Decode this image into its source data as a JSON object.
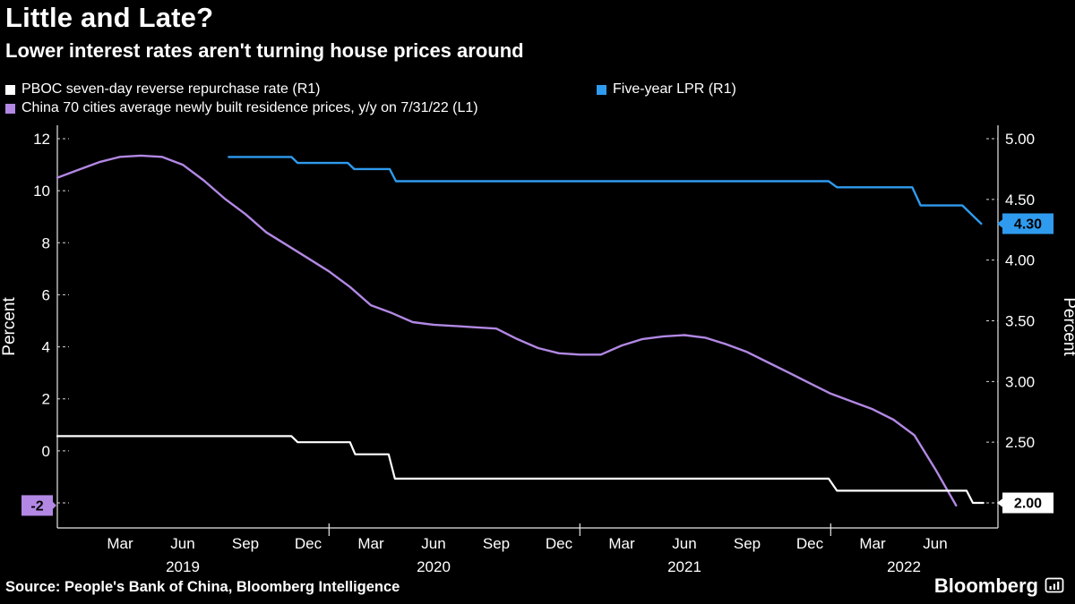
{
  "page": {
    "background": "#000000"
  },
  "header": {
    "title": "Little and Late?",
    "subtitle": "Lower interest rates aren't turning house prices around"
  },
  "legend": [
    {
      "label": "PBOC seven-day reverse repurchase rate (R1)",
      "color": "#ffffff"
    },
    {
      "label": "Five-year LPR (R1)",
      "color": "#2f9bee"
    },
    {
      "label": "China 70 cities average newly built residence prices, y/y on 7/31/22 (L1)",
      "color": "#b288e4"
    }
  ],
  "footer": {
    "source": "Source: People's Bank of China, Bloomberg Intelligence",
    "brand": "Bloomberg"
  },
  "chart_data": {
    "type": "line",
    "title": "Little and Late?",
    "subtitle": "Lower interest rates aren't turning house prices around",
    "x_unit": "months since Dec 2018",
    "x_range": [
      0,
      45
    ],
    "x_axis": {
      "month_ticks": [
        {
          "t": 3,
          "label": "Mar"
        },
        {
          "t": 6,
          "label": "Jun"
        },
        {
          "t": 9,
          "label": "Sep"
        },
        {
          "t": 12,
          "label": "Dec"
        },
        {
          "t": 15,
          "label": "Mar"
        },
        {
          "t": 18,
          "label": "Jun"
        },
        {
          "t": 21,
          "label": "Sep"
        },
        {
          "t": 24,
          "label": "Dec"
        },
        {
          "t": 27,
          "label": "Mar"
        },
        {
          "t": 30,
          "label": "Jun"
        },
        {
          "t": 33,
          "label": "Sep"
        },
        {
          "t": 36,
          "label": "Dec"
        },
        {
          "t": 39,
          "label": "Mar"
        },
        {
          "t": 42,
          "label": "Jun"
        }
      ],
      "year_labels": [
        {
          "t": 6,
          "label": "2019"
        },
        {
          "t": 18,
          "label": "2020"
        },
        {
          "t": 30,
          "label": "2021"
        },
        {
          "t": 40.5,
          "label": "2022"
        }
      ],
      "year_boundary_ticks": [
        13,
        25,
        37
      ]
    },
    "left_axis": {
      "label": "Percent",
      "ticks": [
        {
          "v": 12,
          "label": "12"
        },
        {
          "v": 10,
          "label": "10"
        },
        {
          "v": 8,
          "label": "8"
        },
        {
          "v": 6,
          "label": "6"
        },
        {
          "v": 4,
          "label": "4"
        },
        {
          "v": 2,
          "label": "2"
        },
        {
          "v": 0,
          "label": "0"
        },
        {
          "v": -2,
          "label": "-2"
        }
      ]
    },
    "right_axis": {
      "label": "Percent",
      "ticks": [
        {
          "v": 5.0,
          "label": "5.00"
        },
        {
          "v": 4.5,
          "label": "4.50"
        },
        {
          "v": 4.0,
          "label": "4.00"
        },
        {
          "v": 3.5,
          "label": "3.50"
        },
        {
          "v": 3.0,
          "label": "3.00"
        },
        {
          "v": 2.5,
          "label": "2.50"
        },
        {
          "v": 2.0,
          "label": "2.00"
        }
      ]
    },
    "series": [
      {
        "id": "china-70-cities-prices",
        "name": "China 70 cities average newly built residence prices, y/y on 7/31/22",
        "axis": "left",
        "color": "#b288e4",
        "width": 2.4,
        "t_start": 0,
        "t_step": 1,
        "values": [
          10.5,
          10.8,
          11.1,
          11.3,
          11.35,
          11.3,
          11.0,
          10.4,
          9.7,
          9.1,
          8.4,
          7.9,
          7.4,
          6.9,
          6.3,
          5.6,
          5.3,
          4.95,
          4.85,
          4.8,
          4.75,
          4.7,
          4.3,
          3.95,
          3.75,
          3.7,
          3.7,
          4.05,
          4.3,
          4.4,
          4.45,
          4.35,
          4.1,
          3.8,
          3.4,
          3.0,
          2.6,
          2.2,
          1.9,
          1.6,
          1.2,
          0.6,
          -0.7,
          -2.1
        ]
      },
      {
        "id": "pboc-7day-reverse-repo",
        "name": "PBOC seven-day reverse repurchase rate",
        "axis": "right",
        "color": "#ffffff",
        "width": 2.2,
        "points": [
          [
            0,
            2.55
          ],
          [
            11.2,
            2.55
          ],
          [
            11.5,
            2.5
          ],
          [
            14.0,
            2.5
          ],
          [
            14.25,
            2.4
          ],
          [
            15.85,
            2.4
          ],
          [
            16.15,
            2.2
          ],
          [
            36.9,
            2.2
          ],
          [
            37.3,
            2.1
          ],
          [
            43.5,
            2.1
          ],
          [
            43.8,
            2.0
          ],
          [
            44.3,
            2.0
          ]
        ]
      },
      {
        "id": "five-year-lpr",
        "name": "Five-year LPR",
        "axis": "right",
        "color": "#2f9bee",
        "width": 2.4,
        "points": [
          [
            8.2,
            4.85
          ],
          [
            11.2,
            4.85
          ],
          [
            11.5,
            4.8
          ],
          [
            13.9,
            4.8
          ],
          [
            14.2,
            4.75
          ],
          [
            15.9,
            4.75
          ],
          [
            16.2,
            4.65
          ],
          [
            36.9,
            4.65
          ],
          [
            37.3,
            4.6
          ],
          [
            40.9,
            4.6
          ],
          [
            41.3,
            4.45
          ],
          [
            43.3,
            4.45
          ],
          [
            44.2,
            4.3
          ]
        ]
      }
    ],
    "end_badges": [
      {
        "series": "china-70-cities-prices",
        "side": "left",
        "axis": "left",
        "value": -2.1,
        "label": "-2",
        "color": "#b288e4",
        "text_color": "#000000"
      },
      {
        "series": "five-year-lpr",
        "side": "right",
        "axis": "right",
        "value": 4.3,
        "label": "4.30",
        "color": "#2f9bee",
        "text_color": "#000000"
      },
      {
        "series": "pboc-7day-reverse-repo",
        "side": "right",
        "axis": "right",
        "value": 2.0,
        "label": "2.00",
        "color": "#ffffff",
        "text_color": "#000000"
      }
    ],
    "grid": "none",
    "legend_position": "top"
  }
}
